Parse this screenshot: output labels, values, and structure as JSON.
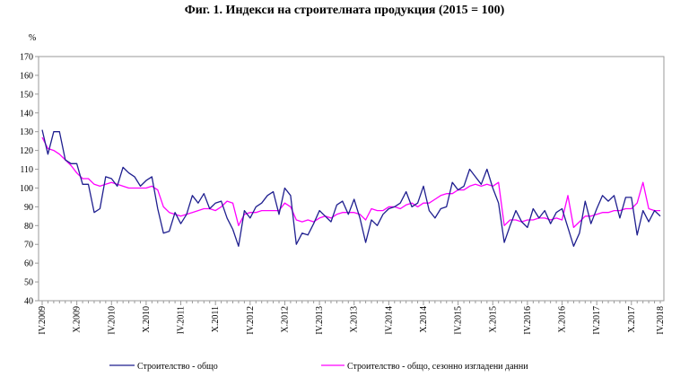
{
  "chart_data": {
    "type": "line",
    "title": "Фиг. 1. Индекси на строителната продукция (2015 = 100)",
    "ylabel": "%",
    "ylim": [
      40,
      170
    ],
    "yticks": [
      40,
      50,
      60,
      70,
      80,
      90,
      100,
      110,
      120,
      130,
      140,
      150,
      160,
      170
    ],
    "grid": false,
    "legend_position": "bottom",
    "xtick_labels": [
      "IV.2009",
      "X.2009",
      "IV.2010",
      "X.2010",
      "IV.2011",
      "X.2011",
      "IV.2012",
      "X.2012",
      "IV.2013",
      "X.2013",
      "IV.2014",
      "X.2014",
      "IV.2015",
      "X.2015",
      "IV.2016",
      "X.2016",
      "IV.2017",
      "X.2017",
      "IV.2018"
    ],
    "x_start": "2009-04",
    "x_end": "2018-04",
    "series": [
      {
        "name": "Строителство - общо",
        "color": "#1f1f8f",
        "values": [
          131,
          118,
          130,
          130,
          115,
          113,
          113,
          102,
          102,
          87,
          89,
          106,
          105,
          101,
          111,
          108,
          106,
          101,
          104,
          106,
          89,
          76,
          77,
          87,
          81,
          86,
          96,
          92,
          97,
          89,
          92,
          93,
          84,
          78,
          69,
          88,
          84,
          90,
          92,
          96,
          98,
          86,
          100,
          96,
          70,
          76,
          75,
          81,
          88,
          85,
          82,
          91,
          93,
          86,
          94,
          84,
          71,
          83,
          80,
          86,
          89,
          90,
          92,
          98,
          90,
          92,
          101,
          88,
          84,
          89,
          90,
          103,
          99,
          101,
          110,
          106,
          102,
          110,
          100,
          92,
          71,
          80,
          88,
          82,
          79,
          89,
          84,
          88,
          81,
          87,
          89,
          79,
          69,
          76,
          93,
          81,
          89,
          96,
          93,
          96,
          84,
          95,
          95,
          75,
          88,
          82,
          88,
          85
        ]
      },
      {
        "name": "Строителство - общо, сезонно изгладени данни",
        "color": "#ff00ff",
        "values": [
          127,
          121,
          120,
          118,
          115,
          112,
          108,
          105,
          105,
          102,
          101,
          102,
          103,
          102,
          101,
          100,
          100,
          100,
          100,
          101,
          99,
          90,
          87,
          86,
          85,
          86,
          87,
          88,
          89,
          89,
          88,
          90,
          93,
          92,
          80,
          86,
          87,
          87,
          88,
          88,
          88,
          88,
          92,
          90,
          83,
          82,
          83,
          82,
          84,
          85,
          84,
          86,
          87,
          87,
          87,
          86,
          83,
          89,
          88,
          88,
          90,
          90,
          89,
          91,
          92,
          90,
          92,
          92,
          94,
          96,
          97,
          97,
          99,
          99,
          101,
          102,
          101,
          102,
          101,
          103,
          80,
          83,
          83,
          82,
          83,
          83,
          84,
          84,
          83,
          84,
          83,
          96,
          79,
          82,
          85,
          85,
          86,
          87,
          87,
          88,
          88,
          89,
          89,
          92,
          103,
          89,
          88,
          88
        ]
      }
    ]
  }
}
